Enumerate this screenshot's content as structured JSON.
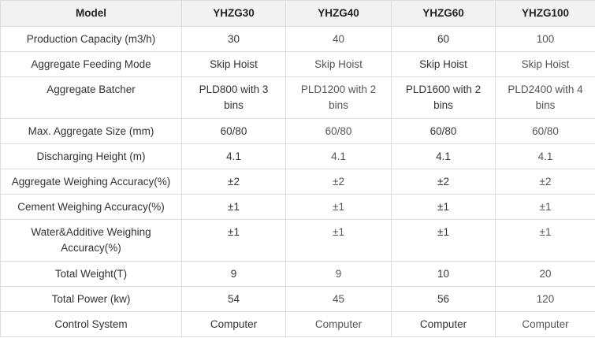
{
  "table": {
    "header": [
      "Model",
      "YHZG30",
      "YHZG40",
      "YHZG60",
      "YHZG100"
    ],
    "rows": [
      [
        "Production Capacity (m3/h)",
        "30",
        "40",
        "60",
        "100"
      ],
      [
        "Aggregate Feeding Mode",
        "Skip Hoist",
        "Skip Hoist",
        "Skip Hoist",
        "Skip Hoist"
      ],
      [
        "Aggregate Batcher",
        "PLD800 with 3 bins",
        "PLD1200 with 2 bins",
        "PLD1600 with 2 bins",
        "PLD2400 with 4 bins"
      ],
      [
        "Max. Aggregate Size (mm)",
        "60/80",
        "60/80",
        "60/80",
        "60/80"
      ],
      [
        "Discharging Height (m)",
        "4.1",
        "4.1",
        "4.1",
        "4.1"
      ],
      [
        "Aggregate Weighing Accuracy(%)",
        "±2",
        "±2",
        "±2",
        "±2"
      ],
      [
        "Cement Weighing Accuracy(%)",
        "±1",
        "±1",
        "±1",
        "±1"
      ],
      [
        "Water&Additive Weighing Accuracy(%)",
        "±1",
        "±1",
        "±1",
        "±1"
      ],
      [
        "Total Weight(T)",
        "9",
        "9",
        "10",
        "20"
      ],
      [
        "Total Power (kw)",
        "54",
        "45",
        "56",
        "120"
      ],
      [
        "Control System",
        "Computer",
        "Computer",
        "Computer",
        "Computer"
      ]
    ]
  }
}
